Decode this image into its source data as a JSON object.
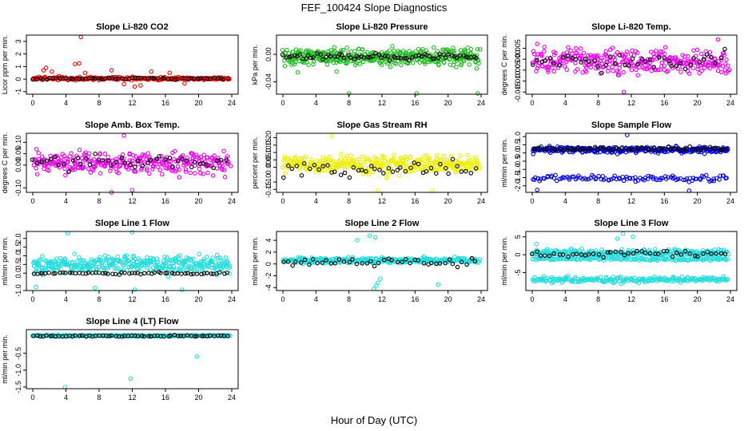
{
  "title": "FEF_100424  Slope Diagnostics",
  "xlabel": "Hour of Day (UTC)",
  "chart_data": [
    {
      "type": "scatter",
      "id": "co2",
      "title": "Slope Li-820 CO2",
      "ylabel": "Licor ppm per min.",
      "xlim": [
        0,
        24
      ],
      "ylim": [
        -1.2,
        3.5
      ],
      "xticks": [
        "0",
        "4",
        "8",
        "12",
        "16",
        "20",
        "24"
      ],
      "yticks": [
        "-1",
        "0",
        "1",
        "2",
        "3"
      ],
      "series": [
        {
          "name": "all",
          "color": "#ff0000",
          "generated": {
            "n": 260,
            "center": 0.05,
            "spread": 0.12
          },
          "outliers": [
            [
              5.8,
              3.35
            ],
            [
              5.1,
              1.2
            ],
            [
              5.6,
              1.25
            ],
            [
              1.6,
              0.9
            ],
            [
              1.3,
              0.7
            ],
            [
              2.3,
              0.6
            ],
            [
              6.3,
              0.5
            ],
            [
              9.5,
              0.7
            ],
            [
              11.0,
              -0.4
            ],
            [
              12.3,
              -0.6
            ],
            [
              13.0,
              -0.5
            ],
            [
              14.3,
              0.6
            ],
            [
              18.3,
              -0.35
            ],
            [
              16.5,
              0.5
            ]
          ]
        },
        {
          "name": "sel",
          "color": "#000000",
          "generated": {
            "n": 60,
            "center": 0.05,
            "spread": 0.08
          }
        }
      ]
    },
    {
      "type": "scatter",
      "id": "pressure",
      "title": "Slope Li-820 Pressure",
      "ylabel": "kPa per min.",
      "xlim": [
        0,
        24
      ],
      "ylim": [
        -0.058,
        0.028
      ],
      "xticks": [
        "0",
        "4",
        "8",
        "12",
        "16",
        "20",
        "24"
      ],
      "yticks": [
        "-0.04",
        "0.00"
      ],
      "series": [
        {
          "name": "all",
          "color": "#22bb22",
          "generated": {
            "n": 420,
            "center": -0.004,
            "spread": 0.012
          },
          "outliers": [
            [
              8.0,
              -0.057
            ],
            [
              16.2,
              -0.057
            ],
            [
              23.6,
              -0.057
            ],
            [
              1.8,
              -0.026
            ],
            [
              6.5,
              -0.025
            ]
          ]
        },
        {
          "name": "sel",
          "color": "#000000",
          "generated": {
            "n": 70,
            "center": -0.003,
            "spread": 0.005
          }
        }
      ]
    },
    {
      "type": "scatter",
      "id": "temp",
      "title": "Slope Li-820 Temp.",
      "ylabel": "degrees C per min.",
      "xlim": [
        0,
        24
      ],
      "ylim": [
        -0.016,
        0.011
      ],
      "xticks": [
        "0",
        "4",
        "8",
        "12",
        "16",
        "20",
        "24"
      ],
      "yticks": [
        "-0.015",
        "-0.010",
        "-0.005",
        "0.000",
        "0.005"
      ],
      "series": [
        {
          "name": "all",
          "color": "#ee00ee",
          "generated": {
            "n": 320,
            "center": -0.001,
            "spread": 0.0055
          },
          "outliers": [
            [
              11.1,
              -0.015
            ],
            [
              22.5,
              0.009
            ],
            [
              0.6,
              0.007
            ]
          ]
        },
        {
          "name": "sel",
          "color": "#000000",
          "generated": {
            "n": 45,
            "center": -0.001,
            "spread": 0.004
          }
        }
      ]
    },
    {
      "type": "scatter",
      "id": "box",
      "title": "Slope Amb. Box Temp.",
      "ylabel": "degrees C per min.",
      "xlim": [
        0,
        24
      ],
      "ylim": [
        -0.12,
        0.14
      ],
      "xticks": [
        "0",
        "4",
        "8",
        "12",
        "16",
        "20",
        "24"
      ],
      "yticks": [
        "-0.10",
        "0.00",
        "0.05",
        "0.10"
      ],
      "series": [
        {
          "name": "all",
          "color": "#ee00ee",
          "generated": {
            "n": 320,
            "center": 0.01,
            "spread": 0.045
          },
          "outliers": [
            [
              9.5,
              -0.12
            ],
            [
              12.0,
              -0.11
            ],
            [
              11.0,
              0.13
            ]
          ]
        },
        {
          "name": "sel",
          "color": "#000000",
          "generated": {
            "n": 45,
            "center": 0.01,
            "spread": 0.035
          }
        }
      ]
    },
    {
      "type": "scatter",
      "id": "rh",
      "title": "Slope Gas Stream RH",
      "ylabel": "percent per min.",
      "xlim": [
        0,
        24
      ],
      "ylim": [
        -0.17,
        0.23
      ],
      "xticks": [
        "0",
        "4",
        "8",
        "12",
        "16",
        "20",
        "24"
      ],
      "yticks": [
        "-0.15",
        "-0.10",
        "0.00",
        "0.05",
        "0.10",
        "0.15",
        "0.20"
      ],
      "series": [
        {
          "name": "all",
          "color": "#eeee00",
          "generated": {
            "n": 340,
            "center": 0.02,
            "spread": 0.06
          },
          "outliers": [
            [
              5.9,
              0.21
            ],
            [
              11.5,
              -0.16
            ],
            [
              18.1,
              -0.16
            ]
          ]
        },
        {
          "name": "sel",
          "color": "#000000",
          "generated": {
            "n": 45,
            "center": -0.01,
            "spread": 0.05
          }
        }
      ]
    },
    {
      "type": "scatter",
      "id": "sample",
      "title": "Slope Sample Flow",
      "ylabel": "ml/min per min.",
      "xlim": [
        0,
        24
      ],
      "ylim": [
        -2.4,
        1.2
      ],
      "xticks": [
        "0",
        "4",
        "8",
        "12",
        "16",
        "20",
        "24"
      ],
      "yticks": [
        "-2.0",
        "-1.5",
        "-1.0",
        "-0.5",
        "0.0",
        "0.5",
        "1.0"
      ],
      "series": [
        {
          "name": "all",
          "color": "#0000dd",
          "generated": {
            "n": 300,
            "center": 0.2,
            "spread": 0.18
          },
          "band2": {
            "n": 110,
            "center": -1.55,
            "spread": 0.18
          },
          "outliers": [
            [
              19.0,
              -2.3
            ],
            [
              11.5,
              1.1
            ],
            [
              0.6,
              -2.25
            ]
          ]
        },
        {
          "name": "sel",
          "color": "#000000",
          "generated": {
            "n": 70,
            "center": 0.25,
            "spread": 0.12
          }
        }
      ]
    },
    {
      "type": "scatter",
      "id": "line1",
      "title": "Slope Line 1 Flow",
      "ylabel": "ml/min per min.",
      "xlim": [
        0,
        24
      ],
      "ylim": [
        -1.0,
        2.4
      ],
      "xticks": [
        "0",
        "4",
        "8",
        "12",
        "16",
        "20",
        "24"
      ],
      "yticks": [
        "-1.0",
        "0.0",
        "0.5",
        "1.0",
        "1.5",
        "2.0"
      ],
      "series": [
        {
          "name": "all",
          "color": "#22dddd",
          "generated": {
            "n": 380,
            "center": 0.5,
            "spread": 0.5
          },
          "outliers": [
            [
              4.2,
              2.3
            ],
            [
              12.0,
              2.35
            ],
            [
              12.3,
              -0.95
            ],
            [
              0.4,
              -0.8
            ],
            [
              18.0,
              -0.95
            ],
            [
              7.5,
              -0.85
            ]
          ]
        },
        {
          "name": "sel",
          "color": "#000000",
          "generated": {
            "n": 60,
            "center": 0.0,
            "spread": 0.06
          }
        }
      ]
    },
    {
      "type": "scatter",
      "id": "line2",
      "title": "Slope Line 2 Flow",
      "ylabel": "ml/min per min.",
      "xlim": [
        0,
        24
      ],
      "ylim": [
        -4.5,
        5.5
      ],
      "xticks": [
        "0",
        "4",
        "8",
        "12",
        "16",
        "20",
        "24"
      ],
      "yticks": [
        "-4",
        "-2",
        "0",
        "2",
        "4"
      ],
      "series": [
        {
          "name": "all",
          "color": "#22dddd",
          "generated": {
            "n": 320,
            "center": 0.6,
            "spread": 0.45
          },
          "outliers": [
            [
              11.0,
              -4.2
            ],
            [
              11.3,
              -3.7
            ],
            [
              11.5,
              -3.2
            ],
            [
              11.8,
              -2.5
            ],
            [
              10.5,
              4.8
            ],
            [
              11.2,
              4.5
            ],
            [
              18.8,
              -3.5
            ],
            [
              9.0,
              4.0
            ]
          ]
        },
        {
          "name": "sel",
          "color": "#000000",
          "generated": {
            "n": 45,
            "center": 0.3,
            "spread": 0.7
          }
        }
      ]
    },
    {
      "type": "scatter",
      "id": "line3",
      "title": "Slope Line 3 Flow",
      "ylabel": "ml/min per min.",
      "xlim": [
        0,
        24
      ],
      "ylim": [
        -10.0,
        6.5
      ],
      "xticks": [
        "0",
        "4",
        "8",
        "12",
        "16",
        "20",
        "24"
      ],
      "yticks": [
        "-5",
        "0",
        "5"
      ],
      "series": [
        {
          "name": "all",
          "color": "#22dddd",
          "generated": {
            "n": 260,
            "center": 0.5,
            "spread": 1.0
          },
          "band2": {
            "n": 220,
            "center": -7.0,
            "spread": 0.8
          },
          "band3": {
            "n": 150,
            "center": -1.2,
            "spread": 0.4
          },
          "outliers": [
            [
              11.0,
              5.9
            ],
            [
              12.2,
              5.0
            ],
            [
              10.3,
              4.5
            ],
            [
              0.5,
              3.0
            ]
          ]
        },
        {
          "name": "sel",
          "color": "#000000",
          "generated": {
            "n": 45,
            "center": 0.2,
            "spread": 0.8
          }
        }
      ]
    },
    {
      "type": "scatter",
      "id": "line4",
      "title": "Slope Line 4 (LT) Flow",
      "ylabel": "ml/min per min.",
      "xlim": [
        0,
        24
      ],
      "ylim": [
        -1.55,
        0.2
      ],
      "xticks": [
        "0",
        "4",
        "8",
        "12",
        "16",
        "20",
        "24"
      ],
      "yticks": [
        "-1.5",
        "-1.0",
        "-0.5"
      ],
      "series": [
        {
          "name": "all",
          "color": "#22dddd",
          "generated": {
            "n": 380,
            "center": 0.02,
            "spread": 0.02
          },
          "outliers": [
            [
              3.9,
              -1.5
            ],
            [
              11.8,
              -1.25
            ],
            [
              19.8,
              -0.6
            ]
          ]
        },
        {
          "name": "sel",
          "color": "#000000",
          "generated": {
            "n": 60,
            "center": 0.01,
            "spread": 0.02
          }
        }
      ]
    }
  ]
}
